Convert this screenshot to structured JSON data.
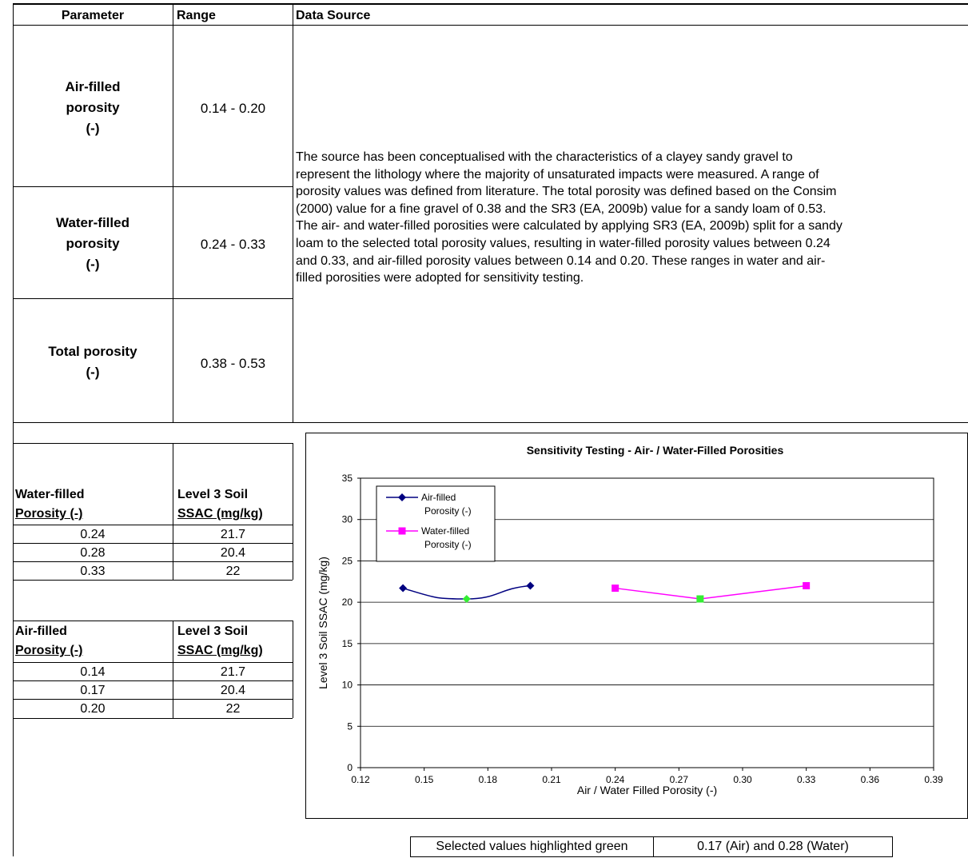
{
  "top_table": {
    "headers": {
      "parameter": "Parameter",
      "range": "Range",
      "source": "Data Source"
    },
    "rows": [
      {
        "param_lines": [
          "Air-filled",
          "porosity",
          "(-)"
        ],
        "range": "0.14 - 0.20"
      },
      {
        "param_lines": [
          "Water-filled",
          "porosity",
          "(-)"
        ],
        "range": "0.24 - 0.33"
      },
      {
        "param_lines": [
          "Total porosity",
          "(-)"
        ],
        "range": "0.38 - 0.53"
      }
    ],
    "source_lines": [
      "The source has been conceptualised with the characteristics of a clayey sandy gravel to",
      "represent the lithology where the majority of unsaturated impacts were measured. A range of",
      "porosity values was defined from literature. The total porosity was defined based on the Consim",
      "(2000) value for a fine gravel of 0.38 and the SR3 (EA, 2009b) value for a sandy loam of 0.53.",
      "The air- and water-filled porosities were calculated by applying SR3 (EA, 2009b) split for a sandy",
      "loam to the selected total porosity values, resulting in water-filled porosity values between 0.24",
      "and 0.33, and air-filled porosity values between 0.14 and 0.20. These ranges in water and air-",
      "filled porosities were adopted for sensitivity testing."
    ]
  },
  "water_table": {
    "col1": [
      "Water-filled",
      "Porosity (-)"
    ],
    "col2": [
      "Level 3 Soil",
      "SSAC (mg/kg)"
    ],
    "rows": [
      [
        "0.24",
        "21.7"
      ],
      [
        "0.28",
        "20.4"
      ],
      [
        "0.33",
        "22"
      ]
    ]
  },
  "air_table": {
    "col1": [
      "Air-filled",
      "Porosity (-)"
    ],
    "col2": [
      "Level 3 Soil",
      "SSAC (mg/kg)"
    ],
    "rows": [
      [
        "0.14",
        "21.7"
      ],
      [
        "0.17",
        "20.4"
      ],
      [
        "0.20",
        "22"
      ]
    ]
  },
  "selected": {
    "label": "Selected values highlighted green",
    "value": "0.17 (Air) and 0.28 (Water)"
  },
  "chart_data": {
    "type": "line",
    "title": "Sensitivity Testing - Air- / Water-Filled Porosities",
    "xlabel": "Air / Water Filled Porosity (-)",
    "ylabel": "Level 3 Soil SSAC (mg/kg)",
    "xlim": [
      0.12,
      0.39
    ],
    "ylim": [
      0,
      35
    ],
    "xticks": [
      "0.12",
      "0.15",
      "0.18",
      "0.21",
      "0.24",
      "0.27",
      "0.30",
      "0.33",
      "0.36",
      "0.39"
    ],
    "yticks": [
      "0",
      "5",
      "10",
      "15",
      "20",
      "25",
      "30",
      "35"
    ],
    "grid": "horizontal",
    "legend_position": "top-left",
    "highlight_color": "#33ee33",
    "series": [
      {
        "name": "Air-filled Porosity (-)",
        "legend_lines": [
          "Air-filled",
          "Porosity (-)"
        ],
        "color": "#000080",
        "marker": "diamond",
        "smooth": true,
        "x": [
          0.14,
          0.17,
          0.2
        ],
        "y": [
          21.7,
          20.4,
          22
        ],
        "highlight_index": 1
      },
      {
        "name": "Water-filled Porosity (-)",
        "legend_lines": [
          "Water-filled",
          "Porosity (-)"
        ],
        "color": "#ff00ff",
        "marker": "square",
        "smooth": false,
        "x": [
          0.24,
          0.28,
          0.33
        ],
        "y": [
          21.7,
          20.4,
          22
        ],
        "highlight_index": 1
      }
    ]
  }
}
